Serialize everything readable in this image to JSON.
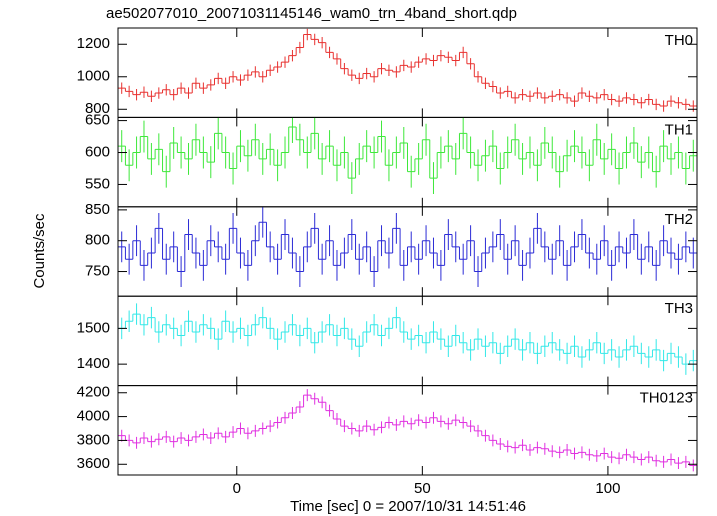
{
  "chart_data": {
    "type": "line",
    "title": "ae502077010_20071031145146_wam0_trn_4band_short.qdp",
    "xlabel": "Time [sec] 0 = 2007/10/31 14:51:46",
    "ylabel": "Counts/sec",
    "xlim": [
      -32,
      124
    ],
    "xticks": [
      0,
      50,
      100
    ],
    "x": [
      -31,
      -29,
      -27,
      -25,
      -23,
      -21,
      -19,
      -17,
      -15,
      -13,
      -11,
      -9,
      -7,
      -5,
      -3,
      -1,
      1,
      3,
      5,
      7,
      9,
      11,
      13,
      15,
      17,
      19,
      21,
      23,
      25,
      27,
      29,
      31,
      33,
      35,
      37,
      39,
      41,
      43,
      45,
      47,
      49,
      51,
      53,
      55,
      57,
      59,
      61,
      63,
      65,
      67,
      69,
      71,
      73,
      75,
      77,
      79,
      81,
      83,
      85,
      87,
      89,
      91,
      93,
      95,
      97,
      99,
      101,
      103,
      105,
      107,
      109,
      111,
      113,
      115,
      117,
      119,
      121,
      123
    ],
    "panels": [
      {
        "name": "TH0",
        "color": "#e8312f",
        "error": 35,
        "ylim": [
          750,
          1300
        ],
        "yticks": [
          800,
          1000,
          1200
        ],
        "values": [
          930,
          910,
          890,
          905,
          880,
          900,
          920,
          890,
          930,
          900,
          960,
          930,
          950,
          990,
          960,
          1000,
          980,
          1010,
          1030,
          1000,
          1040,
          1060,
          1090,
          1130,
          1180,
          1260,
          1230,
          1210,
          1150,
          1110,
          1050,
          1010,
          990,
          1020,
          1000,
          1050,
          1040,
          1030,
          1070,
          1060,
          1090,
          1110,
          1100,
          1130,
          1120,
          1100,
          1150,
          1080,
          1000,
          960,
          940,
          900,
          910,
          870,
          890,
          880,
          900,
          870,
          880,
          890,
          870,
          850,
          900,
          880,
          870,
          890,
          860,
          850,
          870,
          860,
          840,
          860,
          830,
          820,
          850,
          840,
          830,
          820
        ]
      },
      {
        "name": "TH1",
        "color": "#3ee83a",
        "error": 25,
        "ylim": [
          515,
          655
        ],
        "yticks": [
          550,
          600,
          650
        ],
        "values": [
          610,
          580,
          600,
          625,
          590,
          605,
          570,
          615,
          600,
          590,
          620,
          600,
          585,
          630,
          600,
          575,
          610,
          595,
          620,
          590,
          605,
          580,
          600,
          640,
          620,
          600,
          630,
          590,
          610,
          580,
          600,
          560,
          590,
          610,
          600,
          625,
          580,
          600,
          615,
          570,
          590,
          620,
          560,
          600,
          610,
          590,
          630,
          600,
          580,
          595,
          610,
          575,
          600,
          620,
          590,
          600,
          580,
          615,
          600,
          570,
          595,
          610,
          600,
          580,
          620,
          590,
          605,
          575,
          600,
          615,
          585,
          600,
          570,
          610,
          590,
          600,
          575,
          595
        ]
      },
      {
        "name": "TH2",
        "color": "#2b2bd6",
        "error": 25,
        "ylim": [
          710,
          855
        ],
        "yticks": [
          750,
          800,
          850
        ],
        "values": [
          790,
          770,
          800,
          760,
          780,
          820,
          770,
          790,
          750,
          810,
          780,
          760,
          800,
          790,
          770,
          820,
          780,
          760,
          800,
          830,
          790,
          770,
          810,
          780,
          750,
          790,
          820,
          770,
          800,
          760,
          780,
          810,
          770,
          790,
          750,
          800,
          780,
          820,
          760,
          790,
          770,
          800,
          780,
          760,
          810,
          790,
          770,
          800,
          750,
          780,
          790,
          810,
          770,
          800,
          760,
          780,
          820,
          790,
          770,
          800,
          760,
          790,
          810,
          780,
          770,
          800,
          760,
          790,
          780,
          810,
          770,
          790,
          760,
          800,
          780,
          770,
          790,
          780
        ]
      },
      {
        "name": "TH3",
        "color": "#33e8e8",
        "error": 30,
        "ylim": [
          1340,
          1590
        ],
        "yticks": [
          1400,
          1500
        ],
        "values": [
          1500,
          1520,
          1540,
          1510,
          1530,
          1490,
          1510,
          1500,
          1480,
          1520,
          1490,
          1510,
          1500,
          1470,
          1520,
          1490,
          1500,
          1480,
          1510,
          1530,
          1500,
          1470,
          1490,
          1510,
          1480,
          1500,
          1460,
          1490,
          1510,
          1480,
          1500,
          1470,
          1450,
          1490,
          1510,
          1480,
          1500,
          1530,
          1490,
          1470,
          1480,
          1460,
          1490,
          1470,
          1450,
          1480,
          1460,
          1440,
          1470,
          1450,
          1460,
          1430,
          1450,
          1470,
          1440,
          1460,
          1430,
          1450,
          1460,
          1440,
          1430,
          1450,
          1420,
          1440,
          1460,
          1430,
          1440,
          1420,
          1440,
          1450,
          1430,
          1420,
          1440,
          1410,
          1430,
          1420,
          1400,
          1410
        ]
      },
      {
        "name": "TH0123",
        "color": "#e030e0",
        "error": 50,
        "ylim": [
          3510,
          4260
        ],
        "yticks": [
          3600,
          3800,
          4000,
          4200
        ],
        "values": [
          3840,
          3800,
          3780,
          3820,
          3790,
          3810,
          3830,
          3790,
          3820,
          3800,
          3830,
          3850,
          3820,
          3860,
          3830,
          3870,
          3900,
          3860,
          3880,
          3900,
          3920,
          3950,
          3990,
          4030,
          4080,
          4180,
          4150,
          4120,
          4050,
          3980,
          3920,
          3900,
          3880,
          3920,
          3890,
          3910,
          3950,
          3930,
          3960,
          3940,
          3970,
          3950,
          3990,
          3960,
          3940,
          3970,
          3950,
          3920,
          3880,
          3840,
          3800,
          3770,
          3750,
          3740,
          3760,
          3720,
          3740,
          3730,
          3710,
          3700,
          3720,
          3690,
          3700,
          3680,
          3670,
          3690,
          3660,
          3650,
          3680,
          3660,
          3640,
          3660,
          3630,
          3620,
          3640,
          3610,
          3620,
          3590
        ]
      }
    ]
  }
}
